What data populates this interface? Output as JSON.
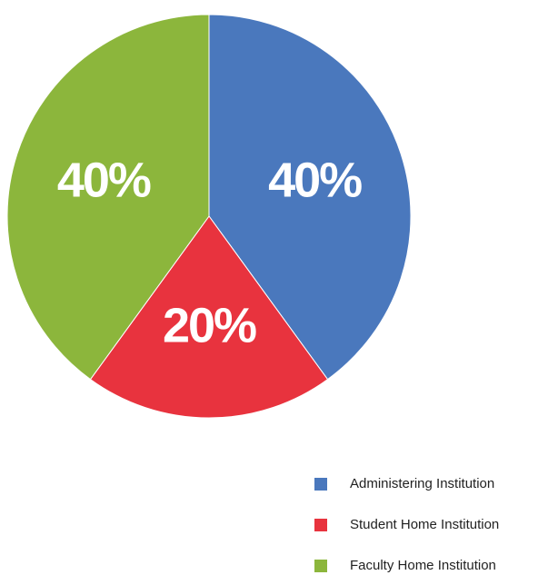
{
  "chart_data": {
    "type": "pie",
    "categories": [
      "Administering Institution",
      "Student Home Institution",
      "Faculty Home Institution"
    ],
    "values": [
      40,
      20,
      40
    ],
    "value_labels": [
      "40%",
      "20%",
      "40%"
    ],
    "colors": [
      "#4a78bd",
      "#e8333e",
      "#8cb63c"
    ]
  }
}
